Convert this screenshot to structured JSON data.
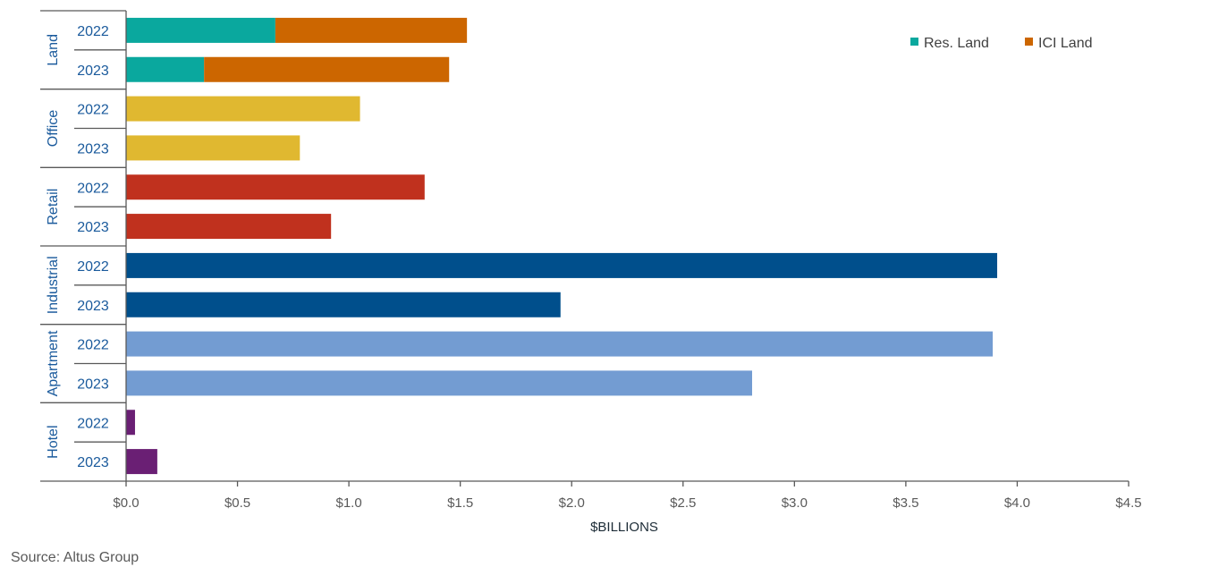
{
  "chart_data": {
    "type": "bar",
    "orientation": "horizontal",
    "stacked": true,
    "xlabel": "$BILLIONS",
    "xlim": [
      0,
      4.5
    ],
    "xticks": [
      "$0.0",
      "$0.5",
      "$1.0",
      "$1.5",
      "$2.0",
      "$2.5",
      "$3.0",
      "$3.5",
      "$4.0",
      "$4.5"
    ],
    "grid": false,
    "legend_position": "top-right",
    "legend": [
      {
        "name": "Res. Land",
        "color": "#0aa89e"
      },
      {
        "name": "ICI Land",
        "color": "#cc6600"
      }
    ],
    "groups": [
      {
        "name": "Land",
        "color": "#cc6600",
        "rows": [
          {
            "year": "2022",
            "segments": [
              {
                "series": "Res. Land",
                "value": 0.67,
                "color": "#0aa89e"
              },
              {
                "series": "ICI Land",
                "value": 0.86,
                "color": "#cc6600"
              }
            ]
          },
          {
            "year": "2023",
            "segments": [
              {
                "series": "Res. Land",
                "value": 0.35,
                "color": "#0aa89e"
              },
              {
                "series": "ICI Land",
                "value": 1.1,
                "color": "#cc6600"
              }
            ]
          }
        ]
      },
      {
        "name": "Office",
        "color": "#e0b830",
        "rows": [
          {
            "year": "2022",
            "segments": [
              {
                "value": 1.05,
                "color": "#e0b830"
              }
            ]
          },
          {
            "year": "2023",
            "segments": [
              {
                "value": 0.78,
                "color": "#e0b830"
              }
            ]
          }
        ]
      },
      {
        "name": "Retail",
        "color": "#c0311e",
        "rows": [
          {
            "year": "2022",
            "segments": [
              {
                "value": 1.34,
                "color": "#c0311e"
              }
            ]
          },
          {
            "year": "2023",
            "segments": [
              {
                "value": 0.92,
                "color": "#c0311e"
              }
            ]
          }
        ]
      },
      {
        "name": "Industrial",
        "color": "#004f8c",
        "rows": [
          {
            "year": "2022",
            "segments": [
              {
                "value": 3.91,
                "color": "#004f8c"
              }
            ]
          },
          {
            "year": "2023",
            "segments": [
              {
                "value": 1.95,
                "color": "#004f8c"
              }
            ]
          }
        ]
      },
      {
        "name": "Apartment",
        "color": "#739cd2",
        "rows": [
          {
            "year": "2022",
            "segments": [
              {
                "value": 3.89,
                "color": "#739cd2"
              }
            ]
          },
          {
            "year": "2023",
            "segments": [
              {
                "value": 2.81,
                "color": "#739cd2"
              }
            ]
          }
        ]
      },
      {
        "name": "Hotel",
        "color": "#6a1f74",
        "rows": [
          {
            "year": "2022",
            "segments": [
              {
                "value": 0.04,
                "color": "#6a1f74"
              }
            ]
          },
          {
            "year": "2023",
            "segments": [
              {
                "value": 0.14,
                "color": "#6a1f74"
              }
            ]
          }
        ]
      }
    ]
  },
  "source": "Source:  Altus Group"
}
